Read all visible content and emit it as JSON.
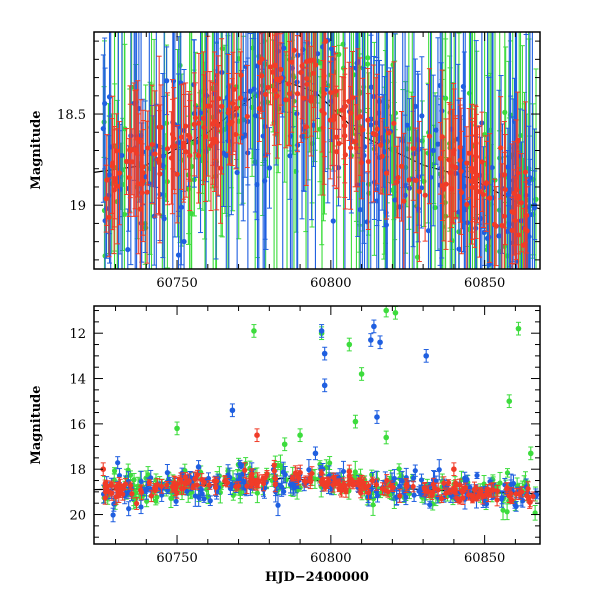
{
  "figure": {
    "xlabel": "HJD−2400000"
  },
  "colors": {
    "green": "#3ddc3d",
    "blue": "#1f5fe0",
    "red": "#f03c28",
    "axis": "#000000"
  },
  "chart_data": [
    {
      "type": "scatter",
      "panel": "top",
      "ylabel": "Magnitude",
      "xlabel": "",
      "xlim": [
        60723,
        60868
      ],
      "ylim": [
        19.35,
        18.05
      ],
      "y_inverted": true,
      "xticks": [
        60750,
        60800,
        60850
      ],
      "xtick_labels": [
        "60750",
        "60800",
        "60850"
      ],
      "yticks": [
        18.5,
        19
      ],
      "ytick_labels": [
        "18.5",
        "19"
      ],
      "series_order": [
        "green",
        "blue",
        "red"
      ],
      "trend": [
        [
          60723,
          18.82
        ],
        [
          60740,
          18.78
        ],
        [
          60760,
          18.6
        ],
        [
          60775,
          18.4
        ],
        [
          60785,
          18.32
        ],
        [
          60795,
          18.38
        ],
        [
          60810,
          18.62
        ],
        [
          60830,
          18.78
        ],
        [
          60845,
          18.85
        ],
        [
          60860,
          18.98
        ],
        [
          60868,
          19.02
        ]
      ]
    },
    {
      "type": "scatter",
      "panel": "bottom",
      "ylabel": "Magnitude",
      "xlabel": "HJD−2400000",
      "xlim": [
        60723,
        60868
      ],
      "ylim": [
        21.3,
        10.8
      ],
      "y_inverted": true,
      "xticks": [
        60750,
        60800,
        60850
      ],
      "xtick_labels": [
        "60750",
        "60800",
        "60850"
      ],
      "yticks": [
        12,
        14,
        16,
        18,
        20
      ],
      "ytick_labels": [
        "12",
        "14",
        "16",
        "18",
        "20"
      ],
      "series_order": [
        "green",
        "blue",
        "red"
      ],
      "trend": [
        [
          60723,
          18.9
        ],
        [
          60740,
          18.85
        ],
        [
          60760,
          18.7
        ],
        [
          60775,
          18.5
        ],
        [
          60785,
          18.4
        ],
        [
          60795,
          18.5
        ],
        [
          60810,
          18.75
        ],
        [
          60830,
          18.9
        ],
        [
          60845,
          19.0
        ],
        [
          60860,
          19.05
        ],
        [
          60868,
          19.1
        ]
      ],
      "outliers": {
        "green": [
          [
            60775,
            11.9
          ],
          [
            60797,
            12.0
          ],
          [
            60806,
            12.5
          ],
          [
            60818,
            11.0
          ],
          [
            60821,
            11.1
          ],
          [
            60861,
            11.8
          ],
          [
            60810,
            13.8
          ],
          [
            60858,
            15.0
          ],
          [
            60750,
            16.2
          ],
          [
            60790,
            16.5
          ],
          [
            60808,
            15.9
          ],
          [
            60818,
            16.6
          ],
          [
            60865,
            17.3
          ],
          [
            60770,
            17.8
          ],
          [
            60785,
            16.9
          ]
        ],
        "blue": [
          [
            60797,
            11.9
          ],
          [
            60798,
            12.9
          ],
          [
            60798,
            14.3
          ],
          [
            60813,
            12.3
          ],
          [
            60816,
            12.4
          ],
          [
            60814,
            11.7
          ],
          [
            60831,
            13.0
          ],
          [
            60768,
            15.4
          ],
          [
            60815,
            15.7
          ],
          [
            60795,
            17.3
          ],
          [
            60757,
            17.9
          ]
        ],
        "red": [
          [
            60776,
            16.5
          ],
          [
            60726,
            18.0
          ],
          [
            60806,
            18.1
          ],
          [
            60840,
            18.0
          ]
        ]
      }
    }
  ]
}
